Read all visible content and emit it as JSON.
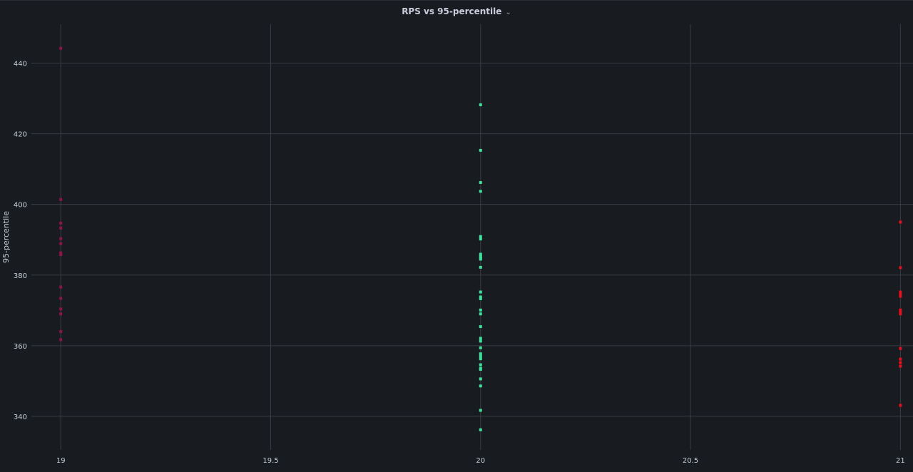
{
  "panel": {
    "title": "RPS vs 95-percentile",
    "menu_icon": "chevron-down-icon"
  },
  "chart_data": {
    "type": "scatter",
    "title": "RPS vs 95-percentile",
    "xlabel": "",
    "ylabel": "95-percentile",
    "xlim": [
      18.93,
      21.03
    ],
    "ylim": [
      330.5,
      451
    ],
    "x_ticks": [
      "19",
      "19.5",
      "20",
      "20.5",
      "21"
    ],
    "x_tick_values": [
      19,
      19.5,
      20,
      20.5,
      21
    ],
    "y_ticks": [
      "340",
      "360",
      "380",
      "400",
      "420",
      "440"
    ],
    "y_tick_values": [
      340,
      360,
      380,
      400,
      420,
      440
    ],
    "grid": true,
    "series": [
      {
        "color": "#8f1446",
        "x": [
          19,
          19,
          19,
          19,
          19,
          19,
          19,
          19,
          19,
          19,
          19,
          19,
          19,
          19,
          19
        ],
        "y": [
          444.2,
          401.4,
          394.7,
          393.3,
          390.3,
          388.9,
          386.3,
          385.8,
          376.6,
          373.4,
          370.4,
          369.0,
          364.0,
          361.7,
          385.9
        ]
      },
      {
        "color": "#3ee09c",
        "x": [
          20,
          20,
          20,
          20,
          20,
          20,
          20,
          20,
          20,
          20,
          20,
          20,
          20,
          20,
          20,
          20,
          20,
          20,
          20,
          20,
          20,
          20,
          20,
          20,
          20,
          20,
          20,
          20,
          20,
          20
        ],
        "y": [
          428.2,
          415.3,
          406.2,
          403.7,
          390.9,
          390.2,
          385.9,
          385.1,
          382.2,
          375.2,
          373.8,
          373.3,
          370.1,
          369.0,
          365.4,
          362.1,
          361.3,
          359.4,
          357.7,
          357.0,
          356.3,
          354.6,
          353.6,
          353.3,
          350.6,
          348.6,
          341.7,
          336.2,
          384.9,
          384.5
        ]
      },
      {
        "color": "#e0101e",
        "x": [
          21,
          21,
          21,
          21,
          21,
          21,
          21,
          21,
          21,
          21,
          21,
          21,
          21
        ],
        "y": [
          395.0,
          382.1,
          375.2,
          374.0,
          370.1,
          369.0,
          359.2,
          356.2,
          355.2,
          354.2,
          343.1,
          369.6,
          374.6
        ]
      }
    ]
  }
}
